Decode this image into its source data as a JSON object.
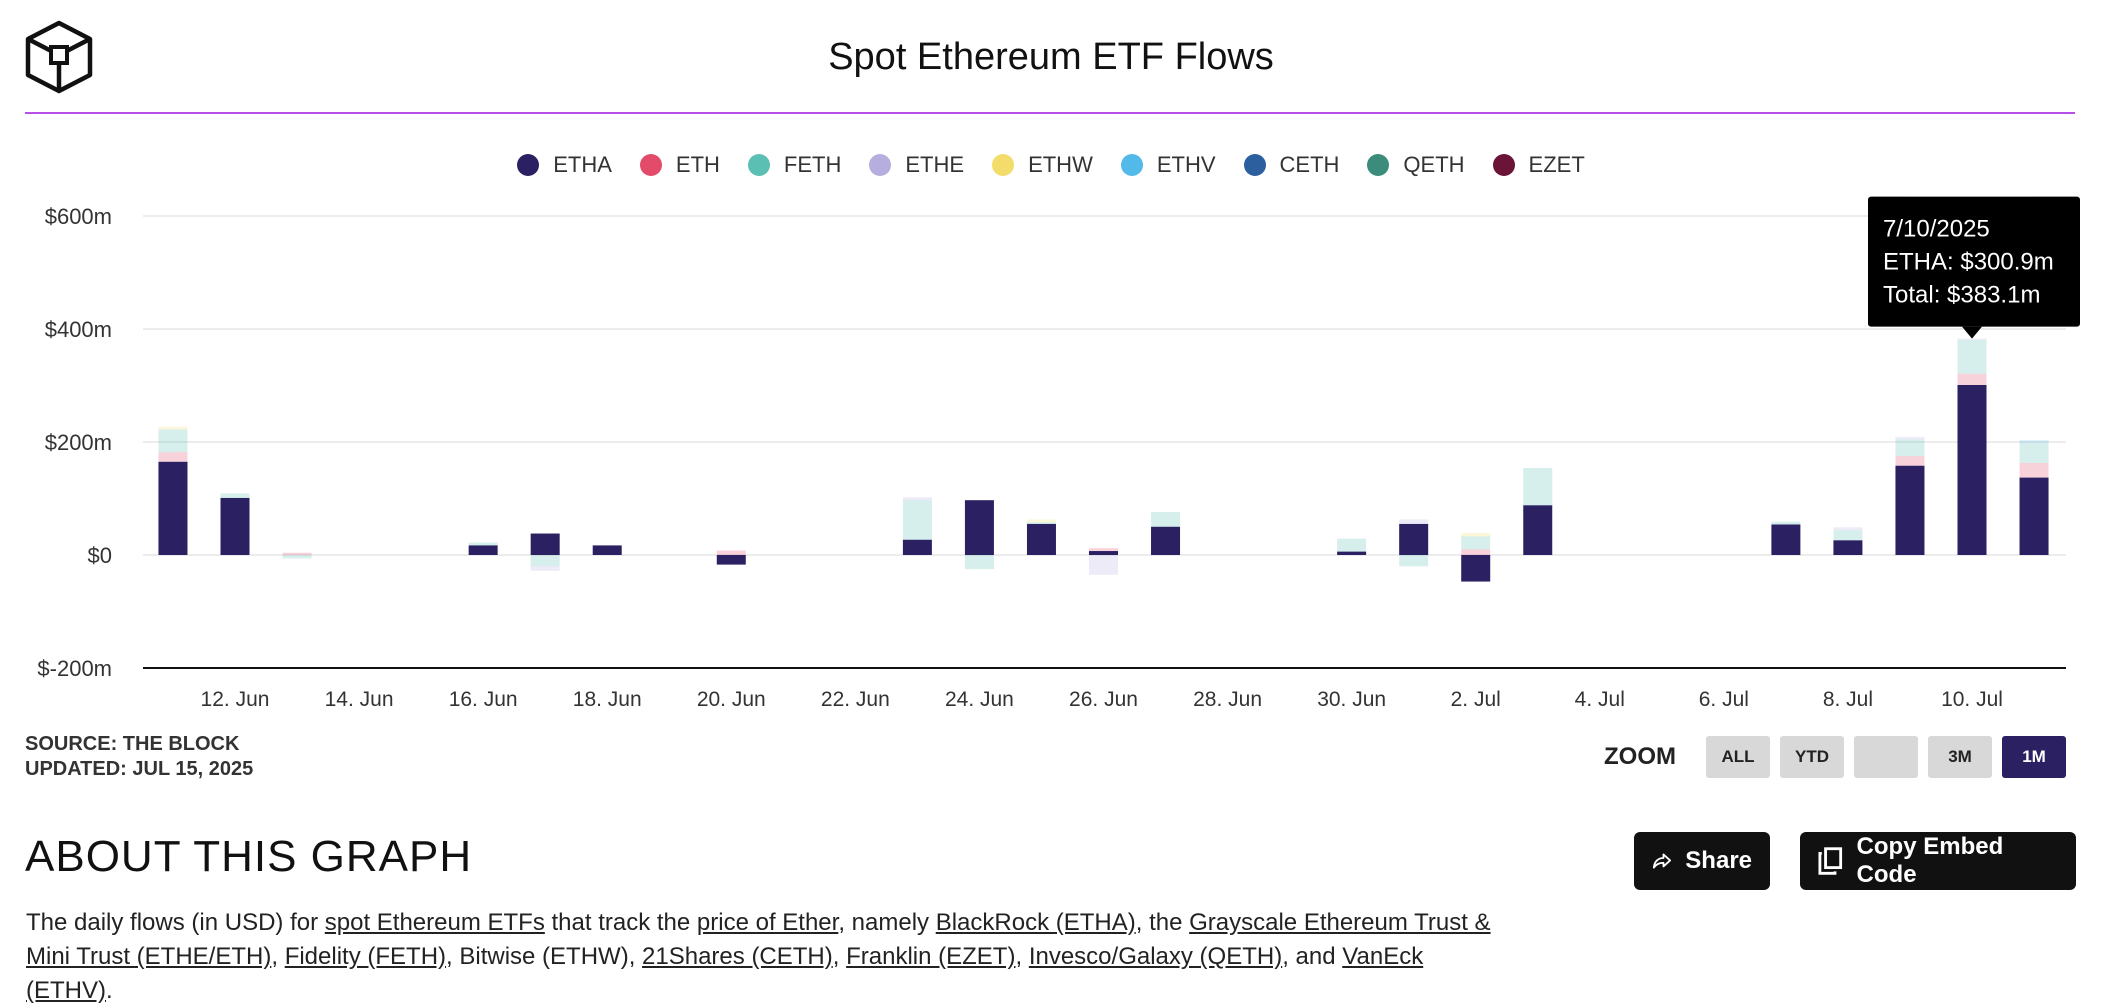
{
  "header": {
    "title": "Spot Ethereum ETF Flows"
  },
  "legend": [
    {
      "name": "ETHA",
      "color": "#2a2062"
    },
    {
      "name": "ETH",
      "color": "#e34b6a"
    },
    {
      "name": "FETH",
      "color": "#5bbfb3"
    },
    {
      "name": "ETHE",
      "color": "#b6aedf"
    },
    {
      "name": "ETHW",
      "color": "#f3dc6a"
    },
    {
      "name": "ETHV",
      "color": "#52b9e8"
    },
    {
      "name": "CETH",
      "color": "#2b5f9e"
    },
    {
      "name": "QETH",
      "color": "#3c8c7c"
    },
    {
      "name": "EZET",
      "color": "#6b1438"
    }
  ],
  "chart_data": {
    "type": "bar",
    "stacked": true,
    "title": "Spot Ethereum ETF Flows",
    "xlabel": "",
    "ylabel": "",
    "ylim": [
      -200,
      600
    ],
    "y_ticks": [
      "$600m",
      "$400m",
      "$200m",
      "$0",
      "$-200m"
    ],
    "y_tick_values": [
      600,
      400,
      200,
      0,
      -200
    ],
    "x_ticks": [
      "12. Jun",
      "14. Jun",
      "16. Jun",
      "18. Jun",
      "20. Jun",
      "22. Jun",
      "24. Jun",
      "26. Jun",
      "28. Jun",
      "30. Jun",
      "2. Jul",
      "4. Jul",
      "6. Jul",
      "8. Jul",
      "10. Jul"
    ],
    "x_tick_dates": [
      "2025-06-12",
      "2025-06-14",
      "2025-06-16",
      "2025-06-18",
      "2025-06-20",
      "2025-06-22",
      "2025-06-24",
      "2025-06-26",
      "2025-06-28",
      "2025-06-30",
      "2025-07-02",
      "2025-07-04",
      "2025-07-06",
      "2025-07-08",
      "2025-07-10"
    ],
    "grid": true,
    "legend_position": "top-center",
    "dates": [
      "2025-06-11",
      "2025-06-12",
      "2025-06-13",
      "2025-06-16",
      "2025-06-17",
      "2025-06-18",
      "2025-06-20",
      "2025-06-23",
      "2025-06-24",
      "2025-06-25",
      "2025-06-26",
      "2025-06-27",
      "2025-06-30",
      "2025-07-01",
      "2025-07-02",
      "2025-07-03",
      "2025-07-07",
      "2025-07-08",
      "2025-07-09",
      "2025-07-10",
      "2025-07-11"
    ],
    "series": [
      {
        "name": "ETHA",
        "color": "#2a2062",
        "values": [
          165,
          101,
          0,
          17,
          38,
          17,
          -17,
          27,
          97,
          55,
          7,
          50,
          6,
          55,
          -47,
          88,
          54,
          26,
          158,
          300.9,
          137
        ]
      },
      {
        "name": "ETH",
        "color": "#e34b6a",
        "values": [
          17,
          0,
          4,
          0,
          0,
          0,
          8,
          0,
          0,
          0,
          5,
          0,
          0,
          0,
          10,
          0,
          0,
          0,
          17,
          20,
          26
        ]
      },
      {
        "name": "FETH",
        "color": "#5bbfb3",
        "values": [
          40,
          8,
          -6,
          5,
          -20,
          0,
          0,
          70,
          -25,
          3,
          0,
          26,
          23,
          -20,
          23,
          66,
          5,
          18,
          30,
          60,
          35
        ]
      },
      {
        "name": "ETHE",
        "color": "#b6aedf",
        "values": [
          0,
          0,
          0,
          0,
          -8,
          0,
          0,
          5,
          0,
          0,
          -35,
          0,
          0,
          8,
          0,
          0,
          0,
          5,
          4,
          2,
          0
        ]
      },
      {
        "name": "ETHW",
        "color": "#f3dc6a",
        "values": [
          5,
          0,
          0,
          0,
          0,
          0,
          0,
          0,
          0,
          5,
          0,
          0,
          0,
          0,
          6,
          0,
          0,
          0,
          0,
          0,
          0
        ]
      },
      {
        "name": "ETHV",
        "color": "#52b9e8",
        "values": [
          0,
          0,
          0,
          0,
          0,
          0,
          0,
          0,
          0,
          0,
          0,
          0,
          0,
          0,
          0,
          0,
          0,
          0,
          0,
          0,
          5
        ]
      }
    ],
    "tooltip": {
      "date": "7/10/2025",
      "line1": "ETHA: $300.9m",
      "line2": "Total: $383.1m",
      "index": 19
    }
  },
  "source": {
    "line1": "SOURCE: THE BLOCK",
    "line2": "UPDATED: JUL 15, 2025"
  },
  "zoom": {
    "label": "ZOOM",
    "buttons": [
      "ALL",
      "YTD",
      "",
      "3M",
      "1M"
    ],
    "active": "1M"
  },
  "about": {
    "title": "ABOUT THIS GRAPH",
    "t1": "The daily flows (in USD) for ",
    "l1": "spot Ethereum ETFs",
    "t2": " that track the ",
    "l2": "price of Ether",
    "t3": ", namely ",
    "l3": "BlackRock (ETHA)",
    "t4": ", the ",
    "l4": "Grayscale Ethereum Trust & Mini Trust (ETHE/ETH)",
    "t5": ", ",
    "l5": "Fidelity (FETH)",
    "t6": ", Bitwise (ETHW), ",
    "l6": "21Shares (CETH)",
    "t7": ", ",
    "l7": "Franklin (EZET)",
    "t8": ", ",
    "l8": "Invesco/Galaxy (QETH)",
    "t9": ", and ",
    "l9": "VanEck (ETHV)",
    "t10": "."
  },
  "actions": {
    "share": "Share",
    "embed": "Copy Embed Code"
  }
}
